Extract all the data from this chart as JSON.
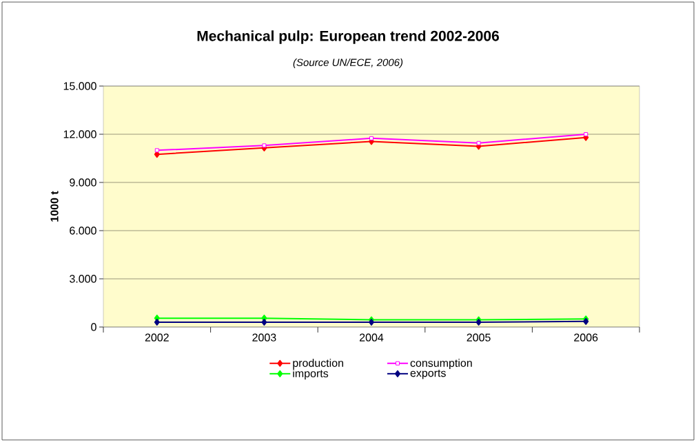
{
  "chart_data": {
    "type": "line",
    "title": "Mechanical pulp: European trend 2002-2006",
    "subtitle": "(Source UN/ECE, 2006)",
    "ylabel": "1000 t",
    "categories": [
      "2002",
      "2003",
      "2004",
      "2005",
      "2006"
    ],
    "series": [
      {
        "name": "production",
        "color": "#ff0000",
        "marker": "diamond",
        "values": [
          10750,
          11150,
          11550,
          11250,
          11800
        ]
      },
      {
        "name": "consumption",
        "color": "#ff00ff",
        "marker": "square",
        "values": [
          11000,
          11300,
          11750,
          11450,
          12000
        ]
      },
      {
        "name": "imports",
        "color": "#00ff00",
        "marker": "diamond",
        "values": [
          550,
          550,
          450,
          450,
          500
        ]
      },
      {
        "name": "exports",
        "color": "#000080",
        "marker": "diamond",
        "values": [
          300,
          300,
          300,
          300,
          350
        ]
      }
    ],
    "ylim": [
      0,
      15000
    ],
    "yticks": [
      {
        "value": 0,
        "label": "0"
      },
      {
        "value": 3000,
        "label": "3.000"
      },
      {
        "value": 6000,
        "label": "6.000"
      },
      {
        "value": 9000,
        "label": "9.000"
      },
      {
        "value": 12000,
        "label": "12.000"
      },
      {
        "value": 15000,
        "label": "15.000"
      }
    ],
    "grid": "y",
    "legend": "bottom"
  }
}
